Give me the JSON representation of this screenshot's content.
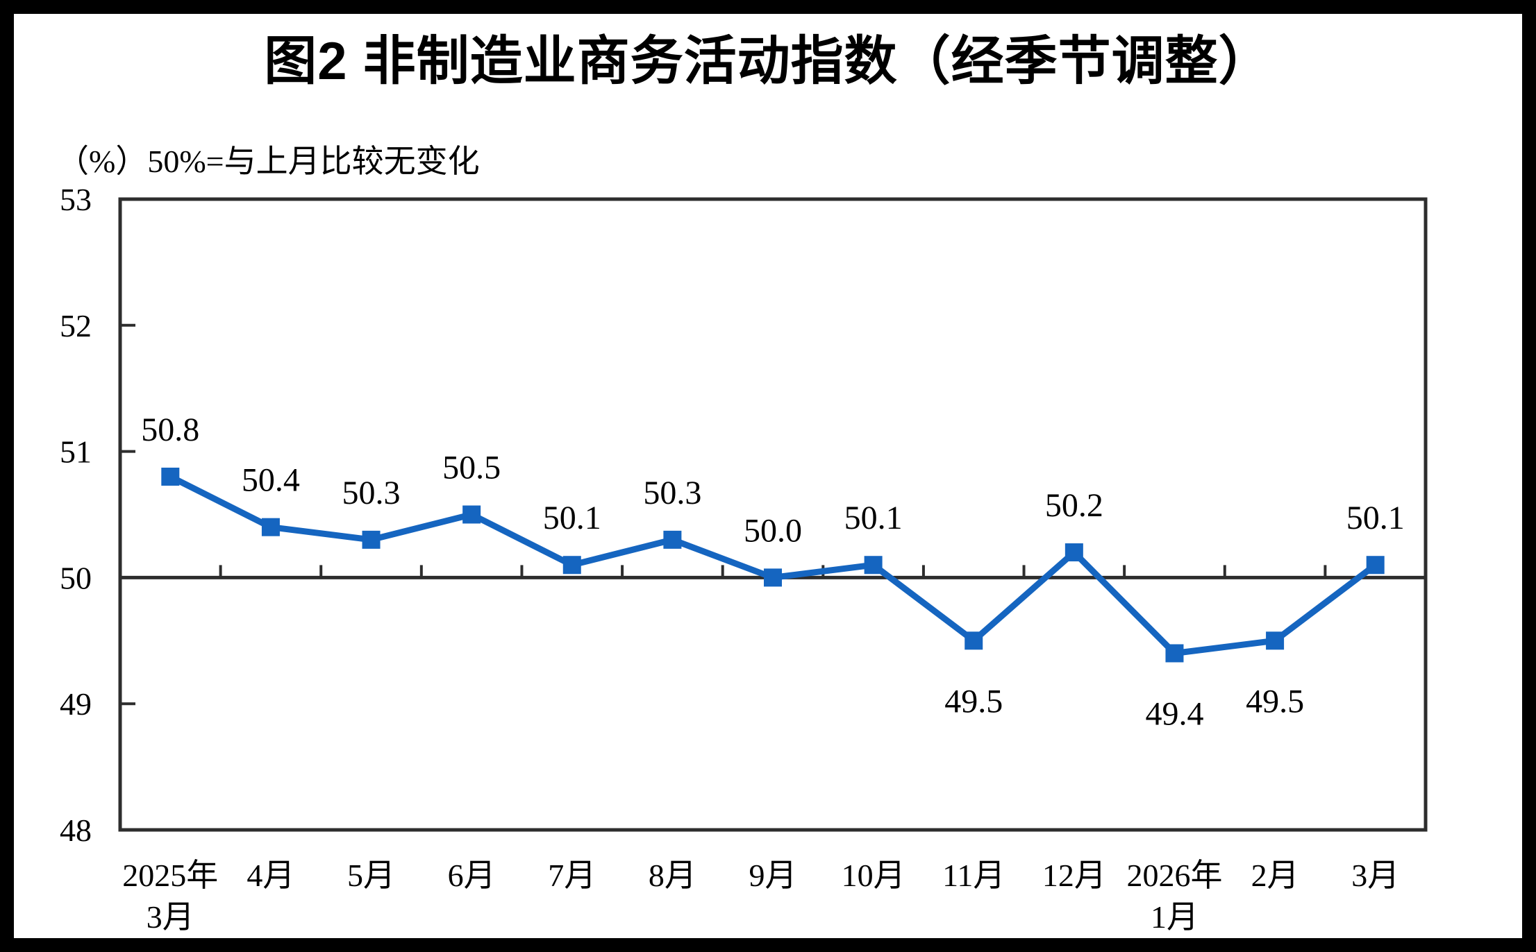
{
  "chart_data": {
    "type": "line",
    "title": "图2 非制造业商务活动指数（经季节调整）",
    "unit_note": "（%）50%=与上月比较无变化",
    "categories": [
      "2025年\n3月",
      "4月",
      "5月",
      "6月",
      "7月",
      "8月",
      "9月",
      "10月",
      "11月",
      "12月",
      "2026年\n1月",
      "2月",
      "3月"
    ],
    "values": [
      50.8,
      50.4,
      50.3,
      50.5,
      50.1,
      50.3,
      50.0,
      50.1,
      49.5,
      50.2,
      49.4,
      49.5,
      50.1
    ],
    "data_labels": [
      "50.8",
      "50.4",
      "50.3",
      "50.5",
      "50.1",
      "50.3",
      "50.0",
      "50.1",
      "49.5",
      "50.2",
      "49.4",
      "49.5",
      "50.1"
    ],
    "ylim": [
      48,
      53
    ],
    "yticks": [
      48,
      49,
      50,
      51,
      52,
      53
    ],
    "baseline_value": 50,
    "grid": false,
    "legend": "none",
    "marker_shape": "square",
    "line_color": "#1565C0",
    "axis_color": "#2d2d2d",
    "text_color": "#000000",
    "frame_color": "#000000",
    "background": "#ffffff"
  }
}
